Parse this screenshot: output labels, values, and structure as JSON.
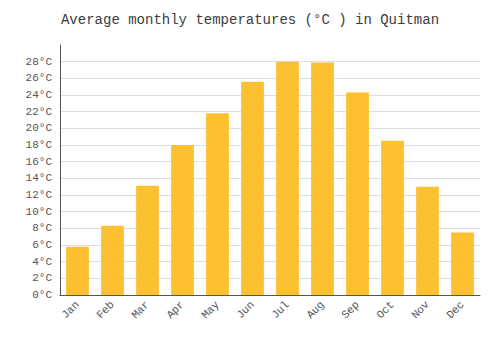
{
  "chart_data": {
    "type": "bar",
    "title": "Average monthly temperatures (°C ) in Quitman",
    "categories": [
      "Jan",
      "Feb",
      "Mar",
      "Apr",
      "May",
      "Jun",
      "Jul",
      "Aug",
      "Sep",
      "Oct",
      "Nov",
      "Dec"
    ],
    "values": [
      5.8,
      8.3,
      13.1,
      18.0,
      21.8,
      25.6,
      28.0,
      27.9,
      24.3,
      18.5,
      13.0,
      7.5
    ],
    "color": "#FCC030",
    "ylim": [
      0,
      30
    ],
    "yticks": [
      {
        "value": 0,
        "label": "0°C"
      },
      {
        "value": 2,
        "label": "2°C"
      },
      {
        "value": 4,
        "label": "4°C"
      },
      {
        "value": 6,
        "label": "6°C"
      },
      {
        "value": 8,
        "label": "8°C"
      },
      {
        "value": 10,
        "label": "10°C"
      },
      {
        "value": 12,
        "label": "12°C"
      },
      {
        "value": 14,
        "label": "14°C"
      },
      {
        "value": 16,
        "label": "16°C"
      },
      {
        "value": 18,
        "label": "18°C"
      },
      {
        "value": 20,
        "label": "20°C"
      },
      {
        "value": 22,
        "label": "22°C"
      },
      {
        "value": 24,
        "label": "24°C"
      },
      {
        "value": 26,
        "label": "26°C"
      },
      {
        "value": 28,
        "label": "28°C"
      }
    ],
    "grid": true
  }
}
